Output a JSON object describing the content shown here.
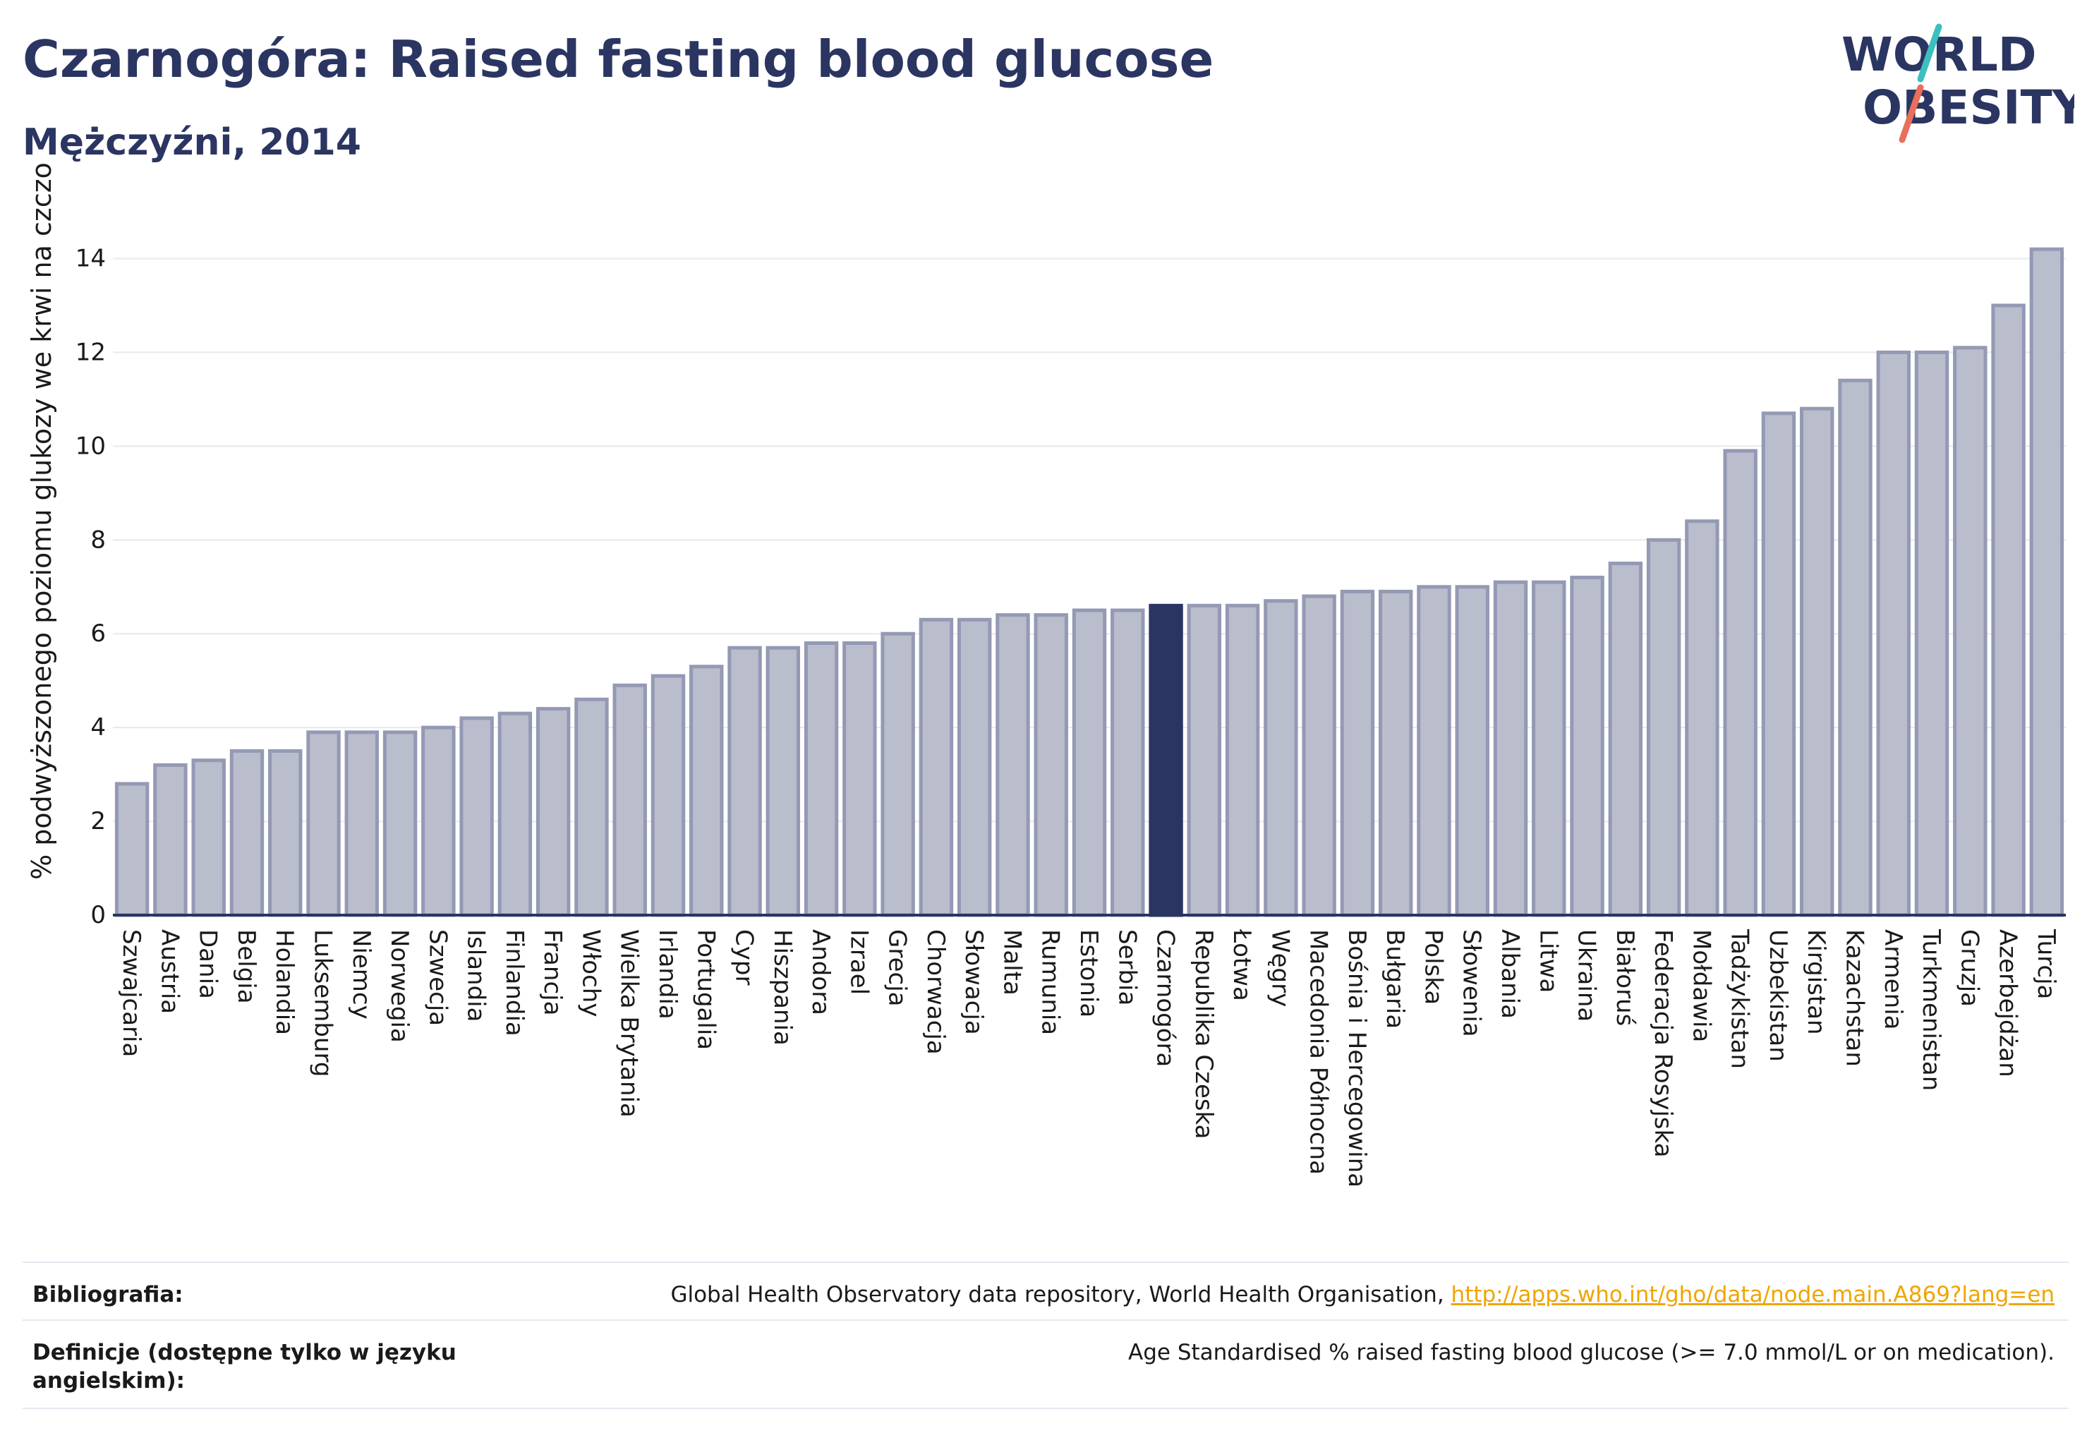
{
  "header": {
    "title": "Czarnogóra: Raised fasting blood glucose",
    "subtitle": "Mężczyźni, 2014"
  },
  "logo": {
    "line1": "WORLD",
    "line2": "OBESITY",
    "colors": {
      "text": "#2b3562",
      "slash_teal": "#3bbfbf",
      "slash_coral": "#e8705a"
    }
  },
  "colors": {
    "bar_fill": "#b9bdcc",
    "bar_stroke": "#9499b4",
    "highlight": "#2b3562",
    "grid": "#e8e8ee",
    "axis": "#2b3562"
  },
  "chart_data": {
    "type": "bar",
    "ylabel": "% podwyższonego poziomu glukozy we krwi na czczo",
    "ylim": [
      0,
      15
    ],
    "yticks": [
      0,
      2,
      4,
      6,
      8,
      10,
      12,
      14
    ],
    "grid": true,
    "highlight": "Czarnogóra",
    "categories": [
      "Szwajcaria",
      "Austria",
      "Dania",
      "Belgia",
      "Holandia",
      "Luksemburg",
      "Niemcy",
      "Norwegia",
      "Szwecja",
      "Islandia",
      "Finlandia",
      "Francja",
      "Włochy",
      "Wielka Brytania",
      "Irlandia",
      "Portugalia",
      "Cypr",
      "Hiszpania",
      "Andora",
      "Izrael",
      "Grecja",
      "Chorwacja",
      "Słowacja",
      "Malta",
      "Rumunia",
      "Estonia",
      "Serbia",
      "Czarnogóra",
      "Republika Czeska",
      "Łotwa",
      "Węgry",
      "Macedonia Północna",
      "Bośnia i Hercegowina",
      "Bułgaria",
      "Polska",
      "Słowenia",
      "Albania",
      "Litwa",
      "Ukraina",
      "Białoruś",
      "Federacja Rosyjska",
      "Mołdawia",
      "Tadżykistan",
      "Uzbekistan",
      "Kirgistan",
      "Kazachstan",
      "Armenia",
      "Turkmenistan",
      "Gruzja",
      "Azerbejdżan",
      "Turcja"
    ],
    "values": [
      2.8,
      3.2,
      3.3,
      3.5,
      3.5,
      3.9,
      3.9,
      3.9,
      4.0,
      4.2,
      4.3,
      4.4,
      4.6,
      4.9,
      5.1,
      5.3,
      5.7,
      5.7,
      5.8,
      5.8,
      6.0,
      6.3,
      6.3,
      6.4,
      6.4,
      6.5,
      6.5,
      6.6,
      6.6,
      6.6,
      6.7,
      6.8,
      6.9,
      6.9,
      7.0,
      7.0,
      7.1,
      7.1,
      7.2,
      7.5,
      8.0,
      8.4,
      9.9,
      10.7,
      10.8,
      11.4,
      12.0,
      12.0,
      12.1,
      13.0,
      14.2
    ]
  },
  "footer": {
    "bibliography_label": "Bibliografia:",
    "bibliography_text": "Global Health Observatory data repository, World Health Organisation, ",
    "bibliography_link": "http://apps.who.int/gho/data/node.main.A869?lang=en",
    "definitions_label": "Definicje (dostępne tylko w języku angielskim):",
    "definitions_text": "Age Standardised % raised fasting blood glucose (>= 7.0 mmol/L or on medication)."
  }
}
